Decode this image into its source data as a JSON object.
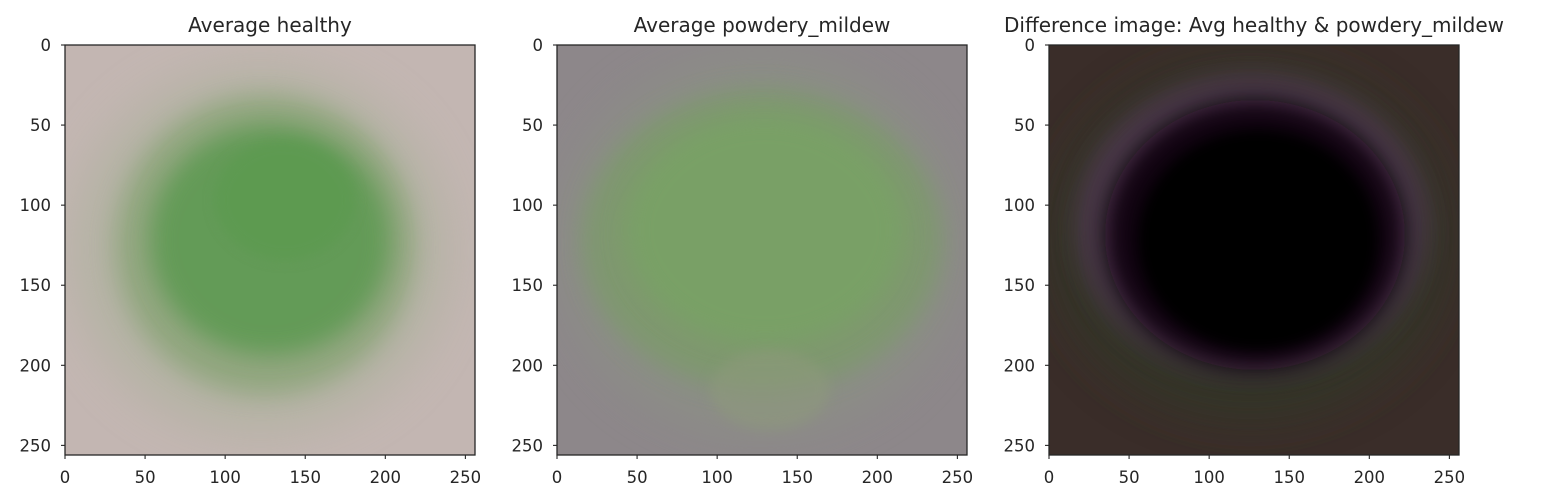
{
  "chart_data": [
    {
      "type": "heatmap",
      "title": "Average healthy",
      "xlim": [
        0,
        256
      ],
      "ylim": [
        256,
        0
      ],
      "xticks": [
        0,
        50,
        100,
        150,
        200,
        250
      ],
      "yticks": [
        0,
        50,
        100,
        150,
        200,
        250
      ],
      "grid": false,
      "colors": {
        "background": "#c3b6b2",
        "mid_green": "#9aae8a",
        "center_green": "#5e9a52"
      }
    },
    {
      "type": "heatmap",
      "title": "Average powdery_mildew",
      "xlim": [
        0,
        256
      ],
      "ylim": [
        256,
        0
      ],
      "xticks": [
        0,
        50,
        100,
        150,
        200,
        250
      ],
      "yticks": [
        0,
        50,
        100,
        150,
        200,
        250
      ],
      "grid": false,
      "colors": {
        "background": "#8d878a",
        "mid_green": "#86987c",
        "center_green": "#78a265"
      }
    },
    {
      "type": "heatmap",
      "title": "Difference image: Avg healthy & powdery_mildew",
      "xlim": [
        0,
        256
      ],
      "ylim": [
        256,
        0
      ],
      "xticks": [
        0,
        50,
        100,
        150,
        200,
        250
      ],
      "yticks": [
        0,
        50,
        100,
        150,
        200,
        250
      ],
      "grid": false,
      "colors": {
        "background": "#3a2d29",
        "purple_rim": "#5a3a5e",
        "green_tint": "#2f3a26",
        "center": "#000000"
      }
    }
  ]
}
